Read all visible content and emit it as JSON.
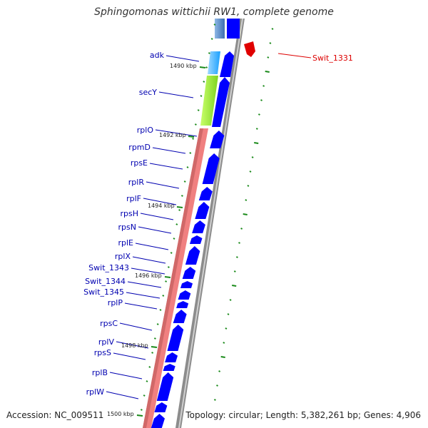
{
  "title": "Sphingomonas wittichii RW1, complete genome",
  "accession": "Accession: NC_009511",
  "summary": "Topology: circular; Length: 5,382,261 bp; Genes: 4,906",
  "colors": {
    "gene_label": "#0000b0",
    "forward_gene": "#0000ff",
    "highlight": "#e00000",
    "tick": "#1a8a1a",
    "ribosomal_bar": "#f08080",
    "backbone": "#8c8c8c"
  },
  "kbp_ticks": [
    "1490 kbp",
    "1492 kbp",
    "1494 kbp",
    "1496 kbp",
    "1498 kbp",
    "1500 kbp"
  ],
  "genes": [
    {
      "name": "adk"
    },
    {
      "name": "secY"
    },
    {
      "name": "rplO"
    },
    {
      "name": "rpmD"
    },
    {
      "name": "rpsE"
    },
    {
      "name": "rplR"
    },
    {
      "name": "rplF"
    },
    {
      "name": "rpsH"
    },
    {
      "name": "rpsN"
    },
    {
      "name": "rplE"
    },
    {
      "name": "rplX"
    },
    {
      "name": "Swit_1343"
    },
    {
      "name": "Swit_1344"
    },
    {
      "name": "Swit_1345"
    },
    {
      "name": "rplP"
    },
    {
      "name": "rpsC"
    },
    {
      "name": "rplV"
    },
    {
      "name": "rpsS"
    },
    {
      "name": "rplB"
    },
    {
      "name": "rplW"
    }
  ],
  "highlighted_gene": {
    "name": "Swit_1331"
  }
}
